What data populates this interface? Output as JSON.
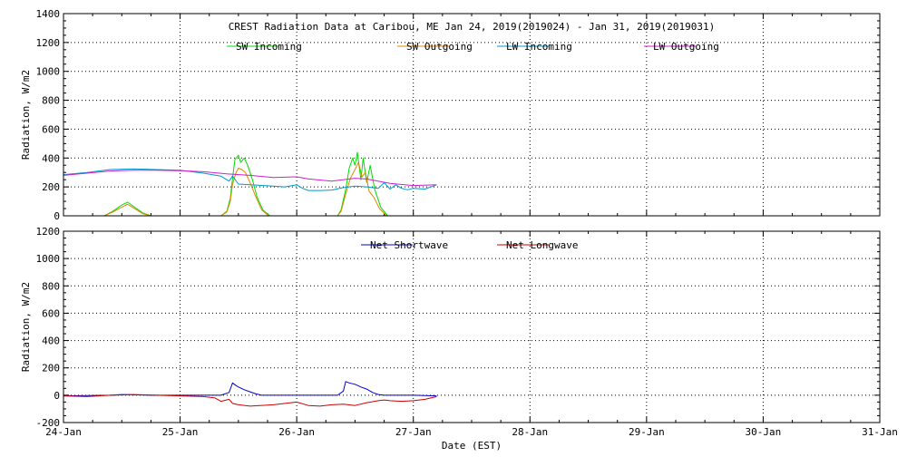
{
  "chart_data": [
    {
      "type": "line",
      "title": "CREST Radiation Data at Caribou, ME   Jan 24, 2019(2019024) - Jan 31, 2019(2019031)",
      "xlabel": "",
      "ylabel": "Radiation, W/m2",
      "xlim": [
        0,
        7
      ],
      "ylim": [
        0,
        1400
      ],
      "yticks": [
        "0",
        "200",
        "400",
        "600",
        "800",
        "1000",
        "1200",
        "1400"
      ],
      "grid": true,
      "legend_position": "top",
      "series": [
        {
          "name": "SW Incoming",
          "color": "#00dd00",
          "x": [
            0.0,
            0.14,
            0.25,
            0.35,
            0.42,
            0.5,
            0.55,
            0.6,
            0.68,
            0.75,
            1.35,
            1.4,
            1.43,
            1.45,
            1.47,
            1.5,
            1.52,
            1.55,
            1.58,
            1.62,
            1.66,
            1.71,
            1.77,
            2.0,
            2.35,
            2.38,
            2.42,
            2.45,
            2.48,
            2.5,
            2.52,
            2.55,
            2.57,
            2.6,
            2.63,
            2.67,
            2.72,
            2.78
          ],
          "values": [
            0,
            0,
            0,
            0,
            30,
            75,
            95,
            65,
            20,
            0,
            0,
            30,
            120,
            260,
            390,
            420,
            370,
            400,
            350,
            250,
            130,
            40,
            0,
            0,
            0,
            40,
            180,
            330,
            400,
            350,
            440,
            250,
            400,
            230,
            350,
            180,
            60,
            0
          ]
        },
        {
          "name": "SW Outgoing",
          "color": "#dd8800",
          "x": [
            0.0,
            0.25,
            0.35,
            0.42,
            0.5,
            0.55,
            0.6,
            0.68,
            0.75,
            1.35,
            1.4,
            1.43,
            1.45,
            1.48,
            1.5,
            1.53,
            1.56,
            1.6,
            1.65,
            1.7,
            1.76,
            2.0,
            2.35,
            2.38,
            2.42,
            2.46,
            2.5,
            2.53,
            2.56,
            2.59,
            2.62,
            2.66,
            2.71,
            2.77
          ],
          "values": [
            0,
            0,
            0,
            25,
            60,
            80,
            55,
            15,
            0,
            0,
            25,
            100,
            220,
            300,
            330,
            320,
            300,
            230,
            130,
            40,
            0,
            0,
            0,
            30,
            150,
            260,
            320,
            370,
            270,
            300,
            170,
            130,
            50,
            0
          ]
        },
        {
          "name": "LW Incoming",
          "color": "#0099cc",
          "x": [
            0.0,
            0.2,
            0.4,
            0.6,
            0.8,
            1.0,
            1.2,
            1.35,
            1.42,
            1.45,
            1.5,
            1.6,
            1.8,
            1.9,
            2.0,
            2.05,
            2.1,
            2.2,
            2.3,
            2.4,
            2.5,
            2.6,
            2.7,
            2.75,
            2.8,
            2.85,
            2.9,
            2.95,
            3.0,
            3.1,
            3.2
          ],
          "values": [
            285,
            300,
            320,
            325,
            320,
            315,
            295,
            275,
            240,
            275,
            220,
            215,
            205,
            200,
            215,
            190,
            175,
            175,
            178,
            195,
            205,
            200,
            190,
            230,
            185,
            215,
            190,
            180,
            190,
            185,
            215
          ]
        },
        {
          "name": "LW Outgoing",
          "color": "#cc22cc",
          "x": [
            0.0,
            0.2,
            0.4,
            0.6,
            0.8,
            1.0,
            1.2,
            1.4,
            1.6,
            1.8,
            2.0,
            2.1,
            2.3,
            2.5,
            2.6,
            2.8,
            3.0,
            3.2
          ],
          "values": [
            280,
            295,
            310,
            315,
            315,
            312,
            305,
            290,
            280,
            265,
            270,
            255,
            240,
            260,
            255,
            225,
            210,
            215
          ]
        }
      ]
    },
    {
      "type": "line",
      "xlabel": "Date (EST)",
      "ylabel": "Radiation, W/m2",
      "xlim": [
        0,
        7
      ],
      "ylim": [
        -200,
        1200
      ],
      "yticks": [
        "-200",
        "0",
        "200",
        "400",
        "600",
        "800",
        "1000",
        "1200"
      ],
      "categories": [
        "24-Jan",
        "25-Jan",
        "26-Jan",
        "27-Jan",
        "28-Jan",
        "29-Jan",
        "30-Jan",
        "31-Jan"
      ],
      "grid": true,
      "legend_position": "top",
      "series": [
        {
          "name": "Net Shortwave",
          "color": "#0000cc",
          "x": [
            0.0,
            0.4,
            0.5,
            0.6,
            0.75,
            1.35,
            1.42,
            1.45,
            1.48,
            1.5,
            1.55,
            1.6,
            1.65,
            1.7,
            2.0,
            2.35,
            2.4,
            2.42,
            2.45,
            2.5,
            2.55,
            2.6,
            2.65,
            2.7,
            2.75,
            3.0,
            3.2
          ],
          "values": [
            -5,
            0,
            5,
            3,
            0,
            0,
            20,
            90,
            70,
            60,
            40,
            25,
            10,
            0,
            0,
            0,
            30,
            100,
            90,
            80,
            60,
            45,
            20,
            5,
            0,
            0,
            -5
          ]
        },
        {
          "name": "Net Longwave",
          "color": "#cc0000",
          "x": [
            0.0,
            0.2,
            0.4,
            0.6,
            0.8,
            1.0,
            1.2,
            1.3,
            1.35,
            1.42,
            1.45,
            1.5,
            1.6,
            1.8,
            1.9,
            2.0,
            2.1,
            2.2,
            2.3,
            2.4,
            2.5,
            2.6,
            2.7,
            2.75,
            2.8,
            2.9,
            3.0,
            3.1,
            3.2
          ],
          "values": [
            -5,
            -10,
            0,
            5,
            0,
            -5,
            -10,
            -20,
            -45,
            -30,
            -60,
            -70,
            -80,
            -70,
            -60,
            -50,
            -75,
            -80,
            -70,
            -65,
            -75,
            -55,
            -40,
            -35,
            -40,
            -45,
            -40,
            -30,
            -10
          ]
        }
      ]
    }
  ]
}
